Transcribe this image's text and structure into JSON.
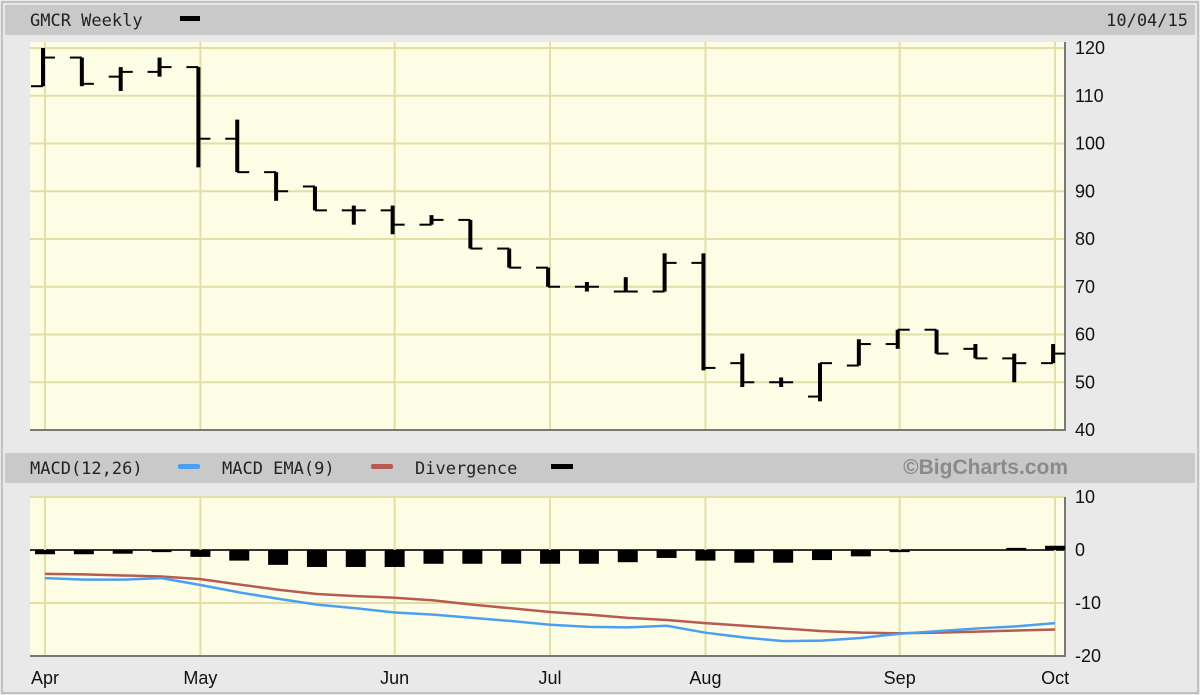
{
  "header": {
    "title": "GMCR Weekly",
    "date": "10/04/15"
  },
  "macd_header": {
    "macd_label": "MACD(12,26)",
    "ema_label": "MACD EMA(9)",
    "div_label": "Divergence",
    "watermark": "©BigCharts.com"
  },
  "colors": {
    "macd": "#4a9ff0",
    "ema": "#b65a52",
    "divergence": "#000000",
    "price": "#000000",
    "plot_bg": "#fdfde6",
    "grid": "#e2dea6",
    "header_bg": "#c9c9c9"
  },
  "chart_data": [
    {
      "type": "ohlc",
      "title": "GMCR Weekly",
      "ylim": [
        40,
        120
      ],
      "yticks": [
        "120",
        "110",
        "100",
        "90",
        "80",
        "70",
        "60",
        "50",
        "40"
      ],
      "grid": true,
      "months": [
        {
          "label": "Apr",
          "bar": 1
        },
        {
          "label": "May",
          "bar": 5
        },
        {
          "label": "Jun",
          "bar": 10
        },
        {
          "label": "Jul",
          "bar": 14
        },
        {
          "label": "Aug",
          "bar": 18
        },
        {
          "label": "Sep",
          "bar": 23
        },
        {
          "label": "Oct",
          "bar": 27
        }
      ],
      "bars": [
        {
          "o": 112,
          "h": 120,
          "l": 112,
          "c": 118
        },
        {
          "o": 118,
          "h": 118,
          "l": 112,
          "c": 112.5
        },
        {
          "o": 114,
          "h": 116,
          "l": 111,
          "c": 115
        },
        {
          "o": 115,
          "h": 118,
          "l": 114,
          "c": 116
        },
        {
          "o": 116,
          "h": 116,
          "l": 95,
          "c": 101
        },
        {
          "o": 101,
          "h": 105,
          "l": 94,
          "c": 94
        },
        {
          "o": 94,
          "h": 94,
          "l": 88,
          "c": 90
        },
        {
          "o": 91,
          "h": 91,
          "l": 86,
          "c": 86
        },
        {
          "o": 86,
          "h": 87,
          "l": 83,
          "c": 86
        },
        {
          "o": 86,
          "h": 87,
          "l": 81,
          "c": 83
        },
        {
          "o": 83,
          "h": 85,
          "l": 83,
          "c": 84
        },
        {
          "o": 84,
          "h": 84,
          "l": 78,
          "c": 78
        },
        {
          "o": 78,
          "h": 78,
          "l": 74,
          "c": 74
        },
        {
          "o": 74,
          "h": 74,
          "l": 70,
          "c": 70
        },
        {
          "o": 70,
          "h": 71,
          "l": 69,
          "c": 70
        },
        {
          "o": 69,
          "h": 72,
          "l": 69,
          "c": 69
        },
        {
          "o": 69,
          "h": 77,
          "l": 69,
          "c": 75
        },
        {
          "o": 75,
          "h": 77,
          "l": 52.5,
          "c": 53
        },
        {
          "o": 54,
          "h": 56,
          "l": 49,
          "c": 50
        },
        {
          "o": 50,
          "h": 51,
          "l": 49,
          "c": 50
        },
        {
          "o": 47,
          "h": 54,
          "l": 46,
          "c": 54
        },
        {
          "o": 53.5,
          "h": 59,
          "l": 53.5,
          "c": 58
        },
        {
          "o": 58,
          "h": 61,
          "l": 57,
          "c": 61
        },
        {
          "o": 61,
          "h": 61,
          "l": 56,
          "c": 56
        },
        {
          "o": 57,
          "h": 58,
          "l": 55,
          "c": 55
        },
        {
          "o": 55,
          "h": 56,
          "l": 50,
          "c": 54
        },
        {
          "o": 54,
          "h": 58,
          "l": 54,
          "c": 56
        }
      ]
    },
    {
      "type": "line+bar",
      "ylim": [
        -20,
        10
      ],
      "yticks": [
        "10",
        "0",
        "-10",
        "-20"
      ],
      "grid": true,
      "series": [
        {
          "name": "MACD(12,26)",
          "values": [
            -5.3,
            -5.6,
            -5.6,
            -5.3,
            -6.6,
            -8,
            -9.2,
            -10.3,
            -11,
            -11.8,
            -12.2,
            -12.8,
            -13.4,
            -14.1,
            -14.5,
            -14.6,
            -14.3,
            -15.6,
            -16.5,
            -17.2,
            -17.1,
            -16.6,
            -15.8,
            -15.3,
            -14.8,
            -14.4,
            -13.8
          ]
        },
        {
          "name": "MACD EMA(9)",
          "values": [
            -4.5,
            -4.6,
            -4.8,
            -5,
            -5.5,
            -6.5,
            -7.5,
            -8.3,
            -8.7,
            -9,
            -9.5,
            -10.3,
            -11,
            -11.7,
            -12.2,
            -12.8,
            -13.2,
            -13.8,
            -14.3,
            -14.8,
            -15.3,
            -15.6,
            -15.7,
            -15.6,
            -15.4,
            -15.2,
            -15
          ]
        },
        {
          "name": "Divergence",
          "values": [
            -0.8,
            -0.8,
            -0.7,
            -0.4,
            -1.3,
            -2,
            -2.8,
            -3.2,
            -3.2,
            -3.2,
            -2.6,
            -2.6,
            -2.6,
            -2.6,
            -2.6,
            -2.3,
            -1.5,
            -2,
            -2.4,
            -2.4,
            -1.9,
            -1.2,
            -0.4,
            0,
            0,
            0.4,
            0.8
          ]
        }
      ]
    }
  ]
}
